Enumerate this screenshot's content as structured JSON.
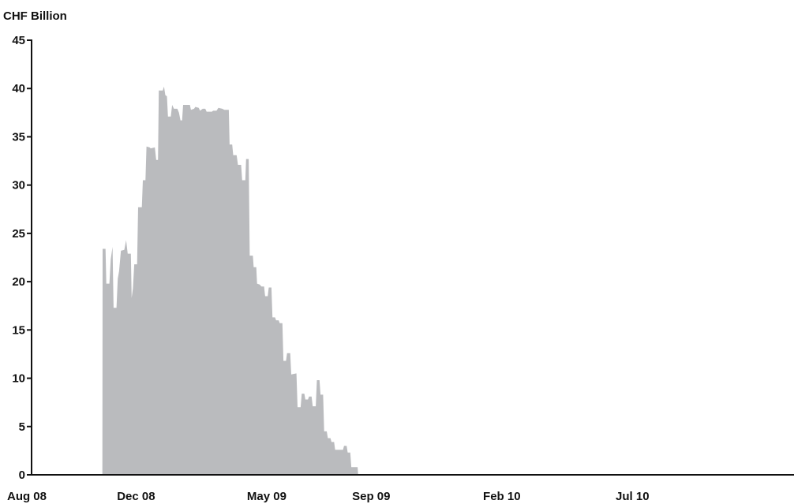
{
  "chart_data": {
    "type": "area",
    "ylabel": "CHF Billion",
    "xlabel": "",
    "title": "",
    "ylim": [
      0,
      45
    ],
    "yticks": [
      0,
      5,
      10,
      15,
      20,
      25,
      30,
      35,
      40,
      45
    ],
    "xticks": [
      "Aug 08",
      "Dec 08",
      "May 09",
      "Sep 09",
      "Feb 10",
      "Jul 10"
    ],
    "x_unit": "months since Aug 08",
    "grid": false,
    "fill_color": "#babbbe",
    "axis_color": "#111111",
    "series": [
      {
        "values": [
          [
            2.71,
            0
          ],
          [
            2.72,
            23.4
          ],
          [
            2.83,
            23.4
          ],
          [
            2.86,
            19.8
          ],
          [
            2.98,
            19.8
          ],
          [
            3.03,
            22.3
          ],
          [
            3.1,
            23.6
          ],
          [
            3.14,
            17.3
          ],
          [
            3.25,
            17.3
          ],
          [
            3.3,
            20.3
          ],
          [
            3.35,
            21.1
          ],
          [
            3.42,
            23.2
          ],
          [
            3.55,
            23.3
          ],
          [
            3.62,
            24.3
          ],
          [
            3.68,
            22.9
          ],
          [
            3.8,
            22.9
          ],
          [
            3.83,
            18.3
          ],
          [
            3.88,
            19.3
          ],
          [
            3.93,
            21.8
          ],
          [
            4.04,
            21.8
          ],
          [
            4.08,
            27.7
          ],
          [
            4.22,
            27.7
          ],
          [
            4.26,
            30.5
          ],
          [
            4.36,
            30.5
          ],
          [
            4.4,
            34.0
          ],
          [
            4.52,
            33.9
          ],
          [
            4.56,
            33.8
          ],
          [
            4.72,
            33.9
          ],
          [
            4.77,
            32.6
          ],
          [
            4.84,
            32.6
          ],
          [
            4.87,
            39.8
          ],
          [
            5.02,
            39.8
          ],
          [
            5.07,
            40.2
          ],
          [
            5.12,
            39.3
          ],
          [
            5.18,
            39.2
          ],
          [
            5.22,
            37.1
          ],
          [
            5.33,
            37.1
          ],
          [
            5.38,
            38.3
          ],
          [
            5.45,
            37.9
          ],
          [
            5.58,
            37.9
          ],
          [
            5.64,
            37.5
          ],
          [
            5.7,
            36.7
          ],
          [
            5.76,
            36.7
          ],
          [
            5.8,
            38.3
          ],
          [
            6.06,
            38.3
          ],
          [
            6.1,
            37.8
          ],
          [
            6.22,
            37.9
          ],
          [
            6.27,
            38.1
          ],
          [
            6.4,
            38.0
          ],
          [
            6.45,
            37.7
          ],
          [
            6.55,
            37.9
          ],
          [
            6.65,
            37.9
          ],
          [
            6.7,
            37.6
          ],
          [
            6.9,
            37.6
          ],
          [
            6.95,
            37.7
          ],
          [
            7.08,
            37.7
          ],
          [
            7.15,
            38.0
          ],
          [
            7.3,
            37.9
          ],
          [
            7.38,
            37.8
          ],
          [
            7.55,
            37.8
          ],
          [
            7.58,
            34.2
          ],
          [
            7.68,
            34.2
          ],
          [
            7.72,
            33.1
          ],
          [
            7.85,
            33.1
          ],
          [
            7.9,
            32.1
          ],
          [
            8.02,
            32.1
          ],
          [
            8.06,
            30.5
          ],
          [
            8.18,
            30.5
          ],
          [
            8.21,
            32.7
          ],
          [
            8.31,
            32.7
          ],
          [
            8.35,
            22.7
          ],
          [
            8.47,
            22.7
          ],
          [
            8.5,
            21.5
          ],
          [
            8.6,
            21.5
          ],
          [
            8.63,
            19.8
          ],
          [
            8.73,
            19.7
          ],
          [
            8.8,
            19.5
          ],
          [
            8.9,
            19.5
          ],
          [
            8.94,
            18.5
          ],
          [
            9.04,
            18.5
          ],
          [
            9.08,
            19.4
          ],
          [
            9.18,
            19.4
          ],
          [
            9.22,
            16.3
          ],
          [
            9.32,
            16.3
          ],
          [
            9.36,
            16.0
          ],
          [
            9.46,
            16.0
          ],
          [
            9.5,
            15.7
          ],
          [
            9.6,
            15.7
          ],
          [
            9.64,
            11.8
          ],
          [
            9.74,
            11.8
          ],
          [
            9.78,
            12.6
          ],
          [
            9.9,
            12.6
          ],
          [
            9.94,
            10.4
          ],
          [
            10.14,
            10.5
          ],
          [
            10.18,
            7.0
          ],
          [
            10.3,
            7.0
          ],
          [
            10.34,
            8.4
          ],
          [
            10.44,
            8.4
          ],
          [
            10.48,
            7.8
          ],
          [
            10.58,
            7.8
          ],
          [
            10.62,
            8.1
          ],
          [
            10.72,
            8.1
          ],
          [
            10.76,
            7.1
          ],
          [
            10.88,
            7.1
          ],
          [
            10.92,
            9.8
          ],
          [
            11.02,
            9.8
          ],
          [
            11.06,
            8.3
          ],
          [
            11.16,
            8.3
          ],
          [
            11.2,
            4.5
          ],
          [
            11.3,
            4.5
          ],
          [
            11.34,
            3.8
          ],
          [
            11.44,
            3.8
          ],
          [
            11.48,
            3.4
          ],
          [
            11.58,
            3.4
          ],
          [
            11.62,
            2.6
          ],
          [
            11.92,
            2.6
          ],
          [
            11.96,
            3.0
          ],
          [
            12.06,
            3.0
          ],
          [
            12.1,
            2.3
          ],
          [
            12.2,
            2.3
          ],
          [
            12.24,
            0.8
          ],
          [
            12.48,
            0.8
          ],
          [
            12.5,
            0
          ]
        ]
      }
    ],
    "x_tick_positions": [
      0,
      4,
      9,
      13,
      18,
      23
    ]
  }
}
